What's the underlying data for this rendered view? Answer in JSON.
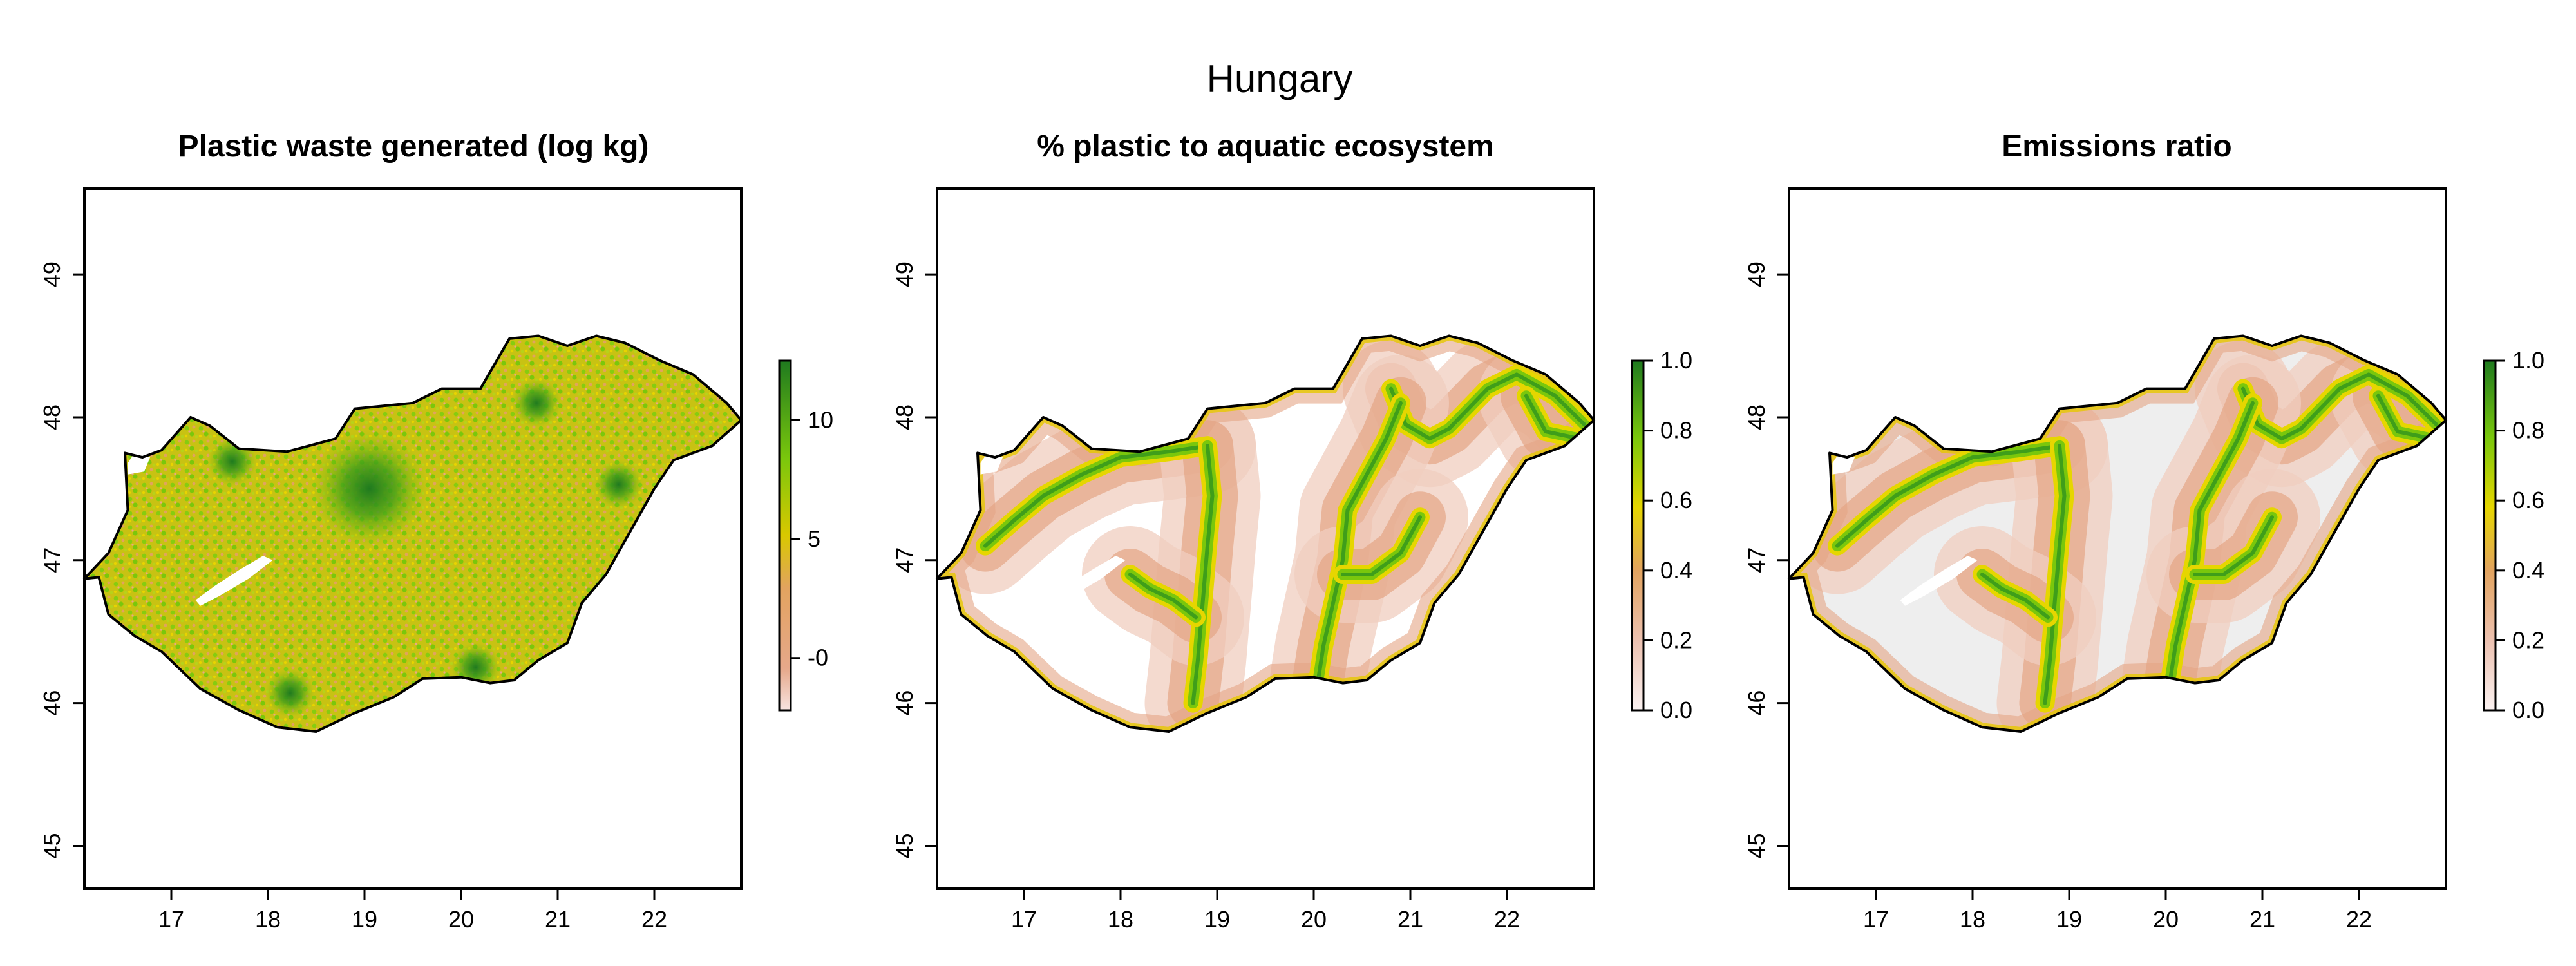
{
  "figure": {
    "title": "Hungary"
  },
  "colors": {
    "accent_green": "#1f7a1f",
    "mid_green": "#7ac70c",
    "yellow": "#e6d600",
    "salmon": "#e4a585",
    "pale_pink": "#f7e3e0",
    "light_gray_zero": "#eeeeee"
  },
  "panels": [
    {
      "title": "Plastic waste generated (log kg)",
      "xticks": [
        "17",
        "18",
        "19",
        "20",
        "21",
        "22"
      ],
      "yticks": [
        "45",
        "46",
        "47",
        "48",
        "49"
      ],
      "legend": {
        "ticks": [
          "-0",
          "5",
          "10"
        ],
        "min": -2.2,
        "max": 12.5,
        "tick_values": [
          0,
          5,
          10
        ]
      }
    },
    {
      "title": "% plastic to aquatic ecosystem",
      "xticks": [
        "17",
        "18",
        "19",
        "20",
        "21",
        "22"
      ],
      "yticks": [
        "45",
        "46",
        "47",
        "48",
        "49"
      ],
      "legend": {
        "ticks": [
          "0.0",
          "0.2",
          "0.4",
          "0.6",
          "0.8",
          "1.0"
        ],
        "min": 0,
        "max": 1,
        "tick_values": [
          0,
          0.2,
          0.4,
          0.6,
          0.8,
          1.0
        ]
      }
    },
    {
      "title": "Emissions ratio",
      "xticks": [
        "17",
        "18",
        "19",
        "20",
        "21",
        "22"
      ],
      "yticks": [
        "45",
        "46",
        "47",
        "48",
        "49"
      ],
      "legend": {
        "ticks": [
          "0.0",
          "0.2",
          "0.4",
          "0.6",
          "0.8",
          "1.0"
        ],
        "min": 0,
        "max": 1,
        "tick_values": [
          0,
          0.2,
          0.4,
          0.6,
          0.8,
          1.0
        ]
      }
    }
  ],
  "map": {
    "lon_range": [
      16.1,
      22.9
    ],
    "lat_range": [
      44.7,
      49.6
    ],
    "border": [
      [
        16.1,
        46.87
      ],
      [
        16.25,
        46.88
      ],
      [
        16.35,
        46.62
      ],
      [
        16.62,
        46.47
      ],
      [
        16.9,
        46.36
      ],
      [
        17.3,
        46.1
      ],
      [
        17.7,
        45.95
      ],
      [
        18.1,
        45.83
      ],
      [
        18.5,
        45.8
      ],
      [
        18.9,
        45.93
      ],
      [
        19.3,
        46.04
      ],
      [
        19.6,
        46.17
      ],
      [
        20.0,
        46.18
      ],
      [
        20.3,
        46.14
      ],
      [
        20.55,
        46.16
      ],
      [
        20.8,
        46.3
      ],
      [
        21.1,
        46.42
      ],
      [
        21.25,
        46.7
      ],
      [
        21.5,
        46.9
      ],
      [
        21.75,
        47.2
      ],
      [
        22.0,
        47.5
      ],
      [
        22.2,
        47.7
      ],
      [
        22.6,
        47.8
      ],
      [
        22.9,
        47.98
      ],
      [
        22.75,
        48.1
      ],
      [
        22.4,
        48.3
      ],
      [
        22.05,
        48.4
      ],
      [
        21.7,
        48.52
      ],
      [
        21.4,
        48.57
      ],
      [
        21.1,
        48.5
      ],
      [
        20.8,
        48.57
      ],
      [
        20.5,
        48.55
      ],
      [
        20.2,
        48.2
      ],
      [
        19.8,
        48.2
      ],
      [
        19.5,
        48.1
      ],
      [
        18.9,
        48.06
      ],
      [
        18.7,
        47.85
      ],
      [
        18.2,
        47.76
      ],
      [
        17.7,
        47.78
      ],
      [
        17.4,
        47.94
      ],
      [
        17.2,
        48.0
      ],
      [
        16.9,
        47.77
      ],
      [
        16.7,
        47.72
      ],
      [
        16.52,
        47.75
      ],
      [
        16.55,
        47.35
      ],
      [
        16.35,
        47.05
      ],
      [
        16.1,
        46.87
      ]
    ],
    "rivers": [
      [
        [
          16.6,
          47.1
        ],
        [
          16.9,
          47.28
        ],
        [
          17.2,
          47.45
        ],
        [
          17.6,
          47.6
        ],
        [
          18.0,
          47.72
        ],
        [
          18.5,
          47.76
        ],
        [
          18.9,
          47.8
        ]
      ],
      [
        [
          18.9,
          47.8
        ],
        [
          18.95,
          47.45
        ],
        [
          18.9,
          47.1
        ],
        [
          18.85,
          46.7
        ],
        [
          18.8,
          46.3
        ],
        [
          18.75,
          46.0
        ]
      ],
      [
        [
          18.1,
          46.9
        ],
        [
          18.3,
          46.8
        ],
        [
          18.55,
          46.72
        ],
        [
          18.78,
          46.6
        ]
      ],
      [
        [
          20.8,
          48.2
        ],
        [
          20.95,
          47.95
        ],
        [
          21.2,
          47.85
        ],
        [
          21.4,
          47.92
        ],
        [
          21.8,
          48.2
        ],
        [
          22.1,
          48.3
        ],
        [
          22.5,
          48.15
        ],
        [
          22.8,
          47.95
        ]
      ],
      [
        [
          20.9,
          48.1
        ],
        [
          20.75,
          47.85
        ],
        [
          20.55,
          47.6
        ],
        [
          20.35,
          47.35
        ],
        [
          20.3,
          47.0
        ],
        [
          20.2,
          46.7
        ],
        [
          20.1,
          46.4
        ],
        [
          20.05,
          46.18
        ]
      ],
      [
        [
          21.1,
          47.3
        ],
        [
          20.9,
          47.05
        ],
        [
          20.6,
          46.9
        ],
        [
          20.3,
          46.9
        ]
      ],
      [
        [
          22.2,
          48.15
        ],
        [
          22.4,
          47.9
        ],
        [
          22.75,
          47.85
        ]
      ]
    ],
    "lakes": [
      [
        [
          17.25,
          46.72
        ],
        [
          17.45,
          46.82
        ],
        [
          17.7,
          46.93
        ],
        [
          17.95,
          47.03
        ],
        [
          18.05,
          47.0
        ],
        [
          17.8,
          46.87
        ],
        [
          17.5,
          46.75
        ],
        [
          17.3,
          46.68
        ]
      ],
      [
        [
          16.55,
          47.6
        ],
        [
          16.72,
          47.62
        ],
        [
          16.78,
          47.72
        ],
        [
          16.62,
          47.75
        ],
        [
          16.55,
          47.68
        ]
      ]
    ],
    "hotspots": [
      [
        19.05,
        47.5
      ],
      [
        21.63,
        47.53
      ],
      [
        20.78,
        48.1
      ],
      [
        18.23,
        46.07
      ],
      [
        20.15,
        46.25
      ],
      [
        17.63,
        47.69
      ]
    ]
  }
}
